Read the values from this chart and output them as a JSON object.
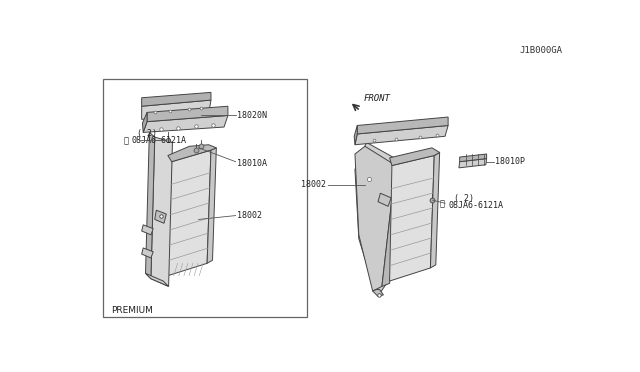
{
  "background_color": "#ffffff",
  "diagram_id": "J1B000GA",
  "box_label": "PREMIUM",
  "front_label": "FRONT",
  "line_color": "#444444",
  "face_light": "#e8e8e8",
  "face_mid": "#cccccc",
  "face_dark": "#aaaaaa",
  "text_color": "#222222",
  "label_fontsize": 6.0,
  "id_fontsize": 6.5
}
